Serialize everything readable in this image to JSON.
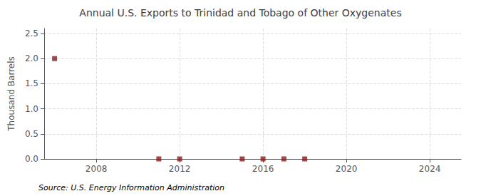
{
  "chart_data": {
    "type": "scatter",
    "title": "Annual U.S. Exports to Trinidad and Tobago of Other Oxygenates",
    "ylabel": "Thousand Barrels",
    "annotations": [
      "Source: U.S. Energy Information Administration"
    ],
    "x": [
      2006,
      2011,
      2012,
      2015,
      2016,
      2017,
      2018
    ],
    "values": [
      2.0,
      0.0,
      0.0,
      0.0,
      0.0,
      0.0,
      0.0
    ],
    "color": "#8b1a1a",
    "marker": "square",
    "xlim": [
      2005.5,
      2025.5
    ],
    "xticks": [
      2008,
      2012,
      2016,
      2020,
      2024
    ],
    "ylim": [
      0.0,
      2.6
    ],
    "yticks": [
      {
        "value": 0.0,
        "label": "0.0"
      },
      0.5,
      {
        "value": 1.0,
        "label": "1.0"
      },
      1.5,
      {
        "value": 2.0,
        "label": "2.0"
      },
      2.5
    ],
    "grid": true
  }
}
